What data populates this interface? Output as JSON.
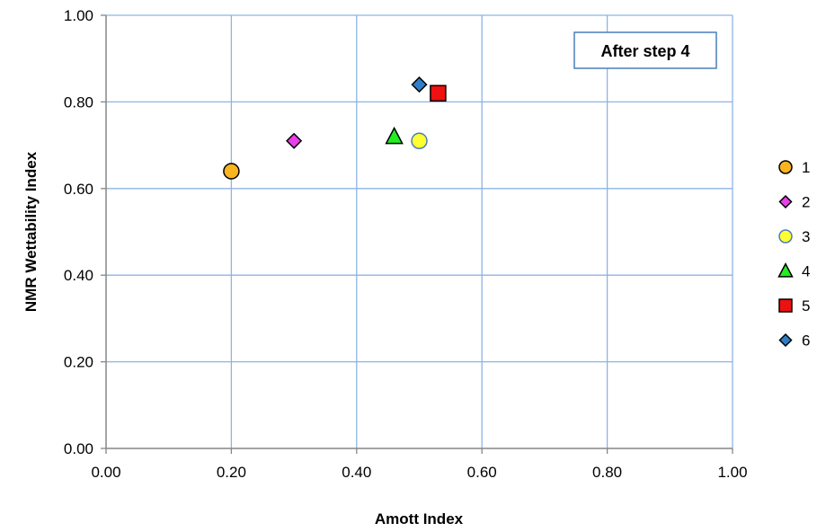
{
  "chart_data": {
    "type": "scatter",
    "xlabel": "Amott Index",
    "ylabel": "NMR Wettability Index",
    "xlim": [
      0,
      1
    ],
    "ylim": [
      0,
      1
    ],
    "x_ticks": [
      "0.00",
      "0.20",
      "0.40",
      "0.60",
      "0.80",
      "1.00"
    ],
    "y_ticks": [
      "0.00",
      "0.20",
      "0.40",
      "0.60",
      "0.80",
      "1.00"
    ],
    "grid": true,
    "legend_position": "right",
    "annotation": "After step 4",
    "series": [
      {
        "name": "1",
        "marker": "circle",
        "color": "#F9B520",
        "x": [
          0.2
        ],
        "y": [
          0.64
        ]
      },
      {
        "name": "2",
        "marker": "diamond",
        "color": "#E83FE8",
        "x": [
          0.3
        ],
        "y": [
          0.71
        ]
      },
      {
        "name": "3",
        "marker": "circle",
        "color": "#FFFF33",
        "stroke": "#4A7EBB",
        "x": [
          0.5
        ],
        "y": [
          0.71
        ]
      },
      {
        "name": "4",
        "marker": "triangle",
        "color": "#22EE22",
        "x": [
          0.46
        ],
        "y": [
          0.72
        ]
      },
      {
        "name": "5",
        "marker": "square",
        "color": "#EE1111",
        "x": [
          0.53
        ],
        "y": [
          0.82
        ]
      },
      {
        "name": "6",
        "marker": "diamond",
        "color": "#2F7FC8",
        "x": [
          0.5
        ],
        "y": [
          0.84
        ]
      }
    ]
  }
}
